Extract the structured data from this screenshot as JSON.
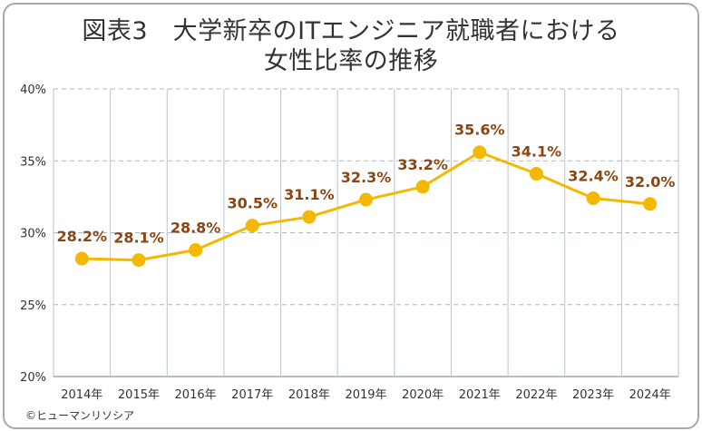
{
  "title_line1": "図表3　大学新卒のITエンジニア就職者における",
  "title_line2": "女性比率の推移",
  "credit": "©ヒューマンリソシア",
  "colors": {
    "line": "#f5b800",
    "label": "#8b4513",
    "grid": "#a9b8c8"
  },
  "chart_data": {
    "type": "line",
    "title": "図表3　大学新卒のITエンジニア就職者における女性比率の推移",
    "categories": [
      "2014年",
      "2015年",
      "2016年",
      "2017年",
      "2018年",
      "2019年",
      "2020年",
      "2021年",
      "2022年",
      "2023年",
      "2024年"
    ],
    "values": [
      28.2,
      28.1,
      28.8,
      30.5,
      31.1,
      32.3,
      33.2,
      35.6,
      34.1,
      32.4,
      32.0
    ],
    "data_labels": [
      "28.2%",
      "28.1%",
      "28.8%",
      "30.5%",
      "31.1%",
      "32.3%",
      "33.2%",
      "35.6%",
      "34.1%",
      "32.4%",
      "32.0%"
    ],
    "ylim": [
      20,
      40
    ],
    "yticks": [
      20,
      25,
      30,
      35,
      40
    ],
    "ytick_labels": [
      "20%",
      "25%",
      "30%",
      "35%",
      "40%"
    ],
    "xlabel": "",
    "ylabel": "",
    "grid": true,
    "legend": "none"
  }
}
